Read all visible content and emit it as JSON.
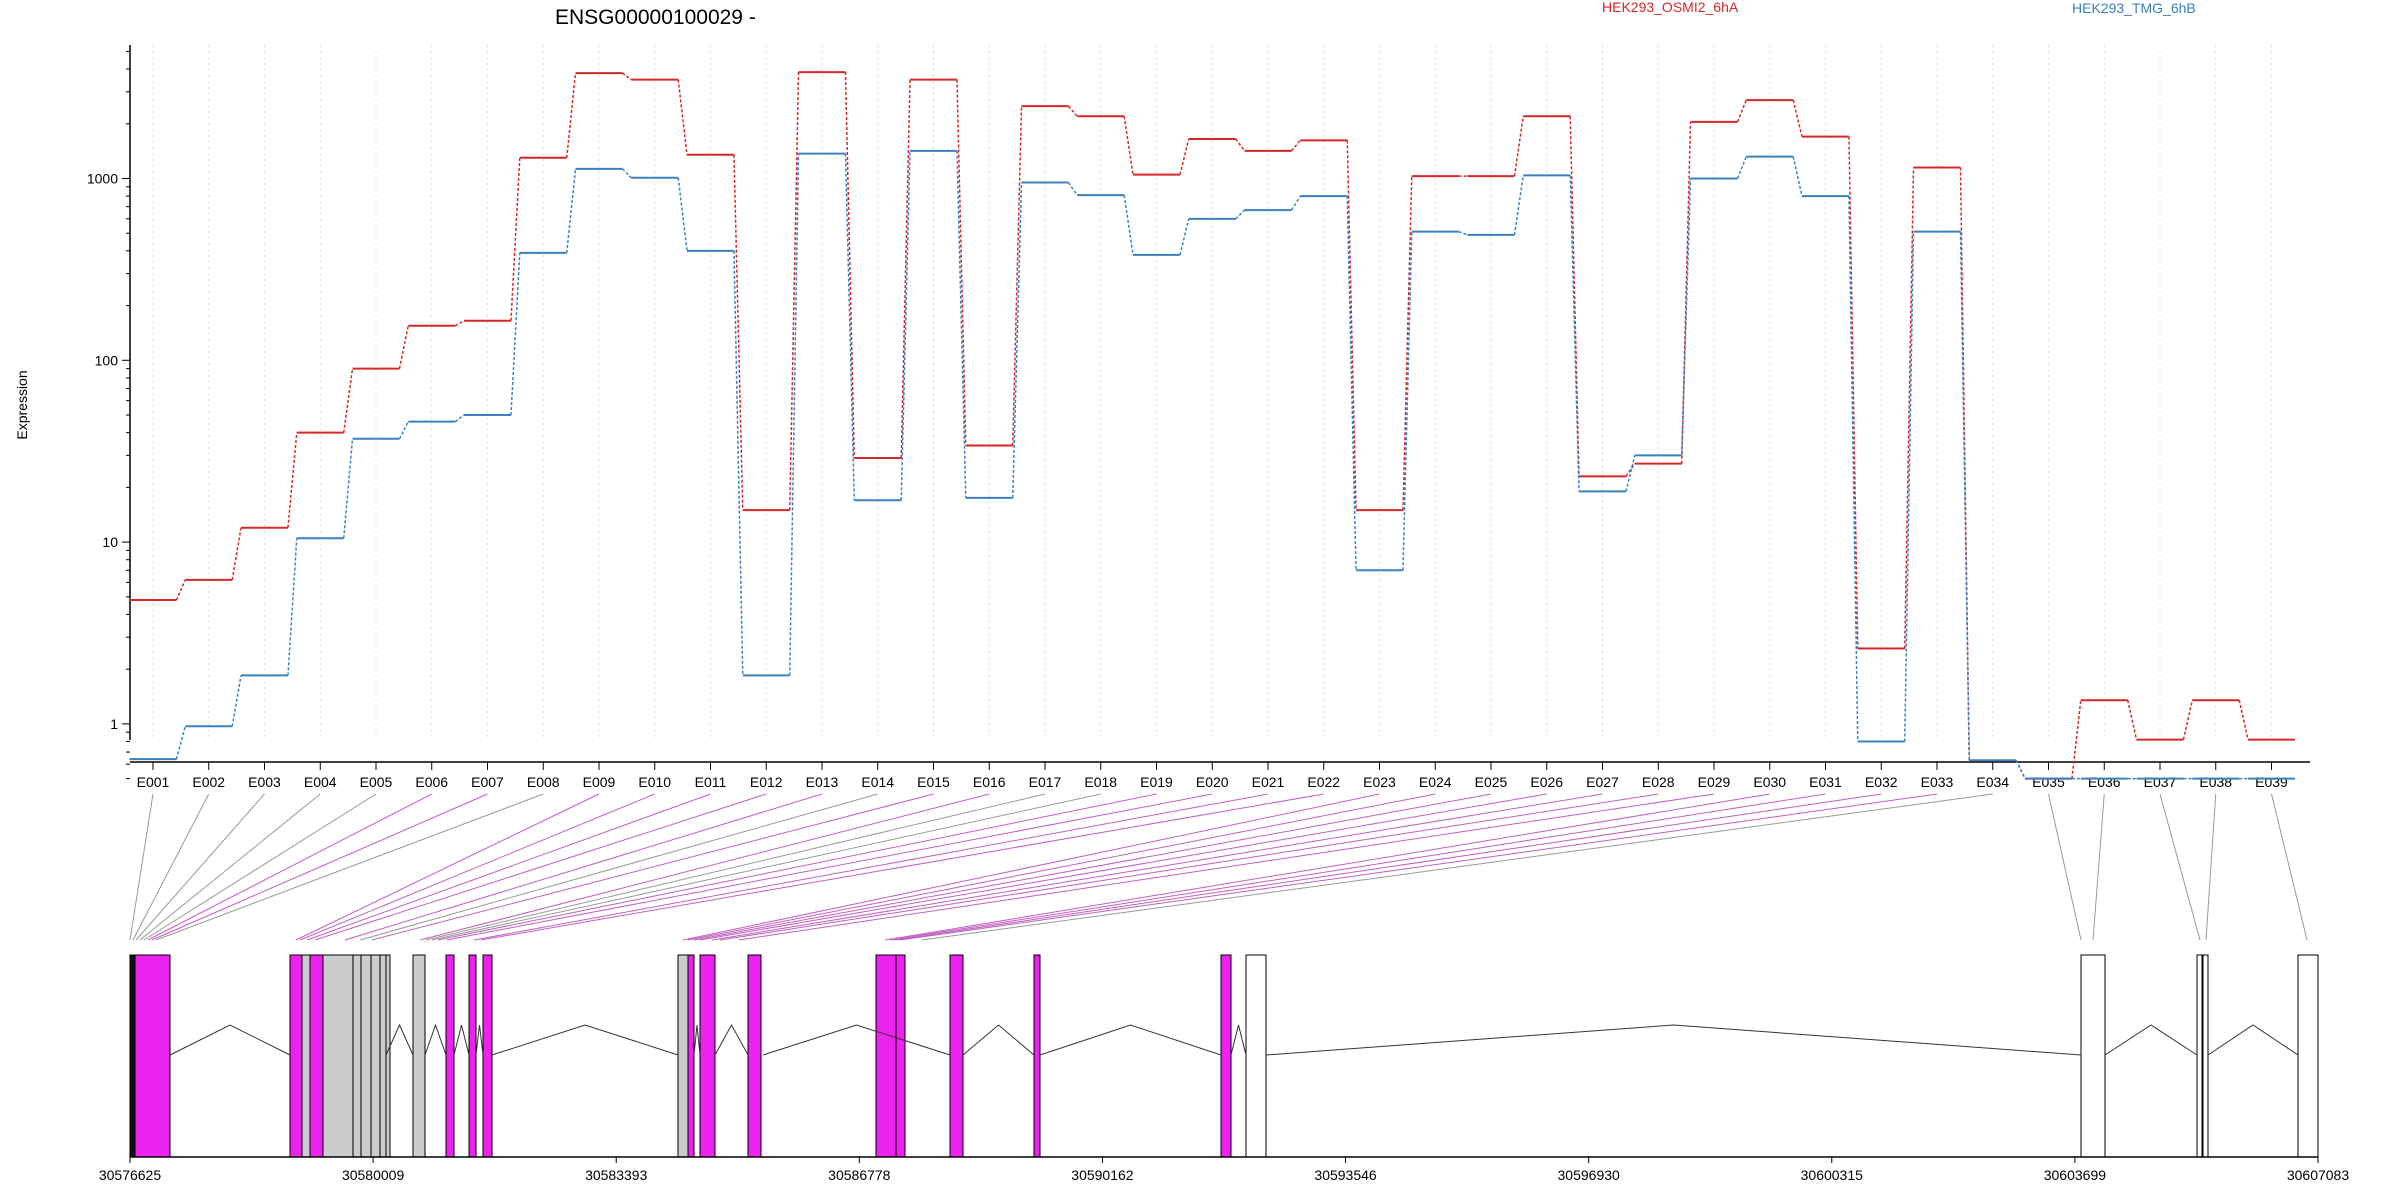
{
  "chart_data": {
    "type": "line",
    "title": "ENSG00000100029 -",
    "ylabel": "Expression",
    "yscale": "log",
    "ylim": [
      0.5,
      5000
    ],
    "yticks": [
      1,
      10,
      100,
      1000
    ],
    "legend_position": "top",
    "categories": [
      "E001",
      "E002",
      "E003",
      "E004",
      "E005",
      "E006",
      "E007",
      "E008",
      "E009",
      "E010",
      "E011",
      "E012",
      "E013",
      "E014",
      "E015",
      "E016",
      "E017",
      "E018",
      "E019",
      "E020",
      "E021",
      "E022",
      "E023",
      "E024",
      "E025",
      "E026",
      "E027",
      "E028",
      "E029",
      "E030",
      "E031",
      "E032",
      "E033",
      "E034",
      "E035",
      "E036",
      "E037",
      "E038",
      "E039"
    ],
    "series": [
      {
        "name": "HEK293_OSMI2_6hA",
        "color": "#d62728",
        "values": [
          4.8,
          6.2,
          12,
          40,
          90,
          155,
          165,
          1300,
          3800,
          3500,
          1350,
          15,
          3850,
          29,
          3500,
          34,
          2500,
          2200,
          1050,
          1650,
          1420,
          1620,
          15,
          1030,
          1030,
          2200,
          23,
          27,
          2050,
          2700,
          1700,
          2.6,
          1150,
          0.63,
          0.5,
          1.35,
          0.82,
          1.35,
          0.82
        ]
      },
      {
        "name": "HEK293_TMG_6hB",
        "color": "#3c80c0",
        "values": [
          0.64,
          0.97,
          1.85,
          10.5,
          37,
          46,
          50,
          390,
          1130,
          1010,
          400,
          1.85,
          1370,
          17,
          1420,
          17.5,
          950,
          810,
          380,
          600,
          670,
          800,
          7,
          510,
          490,
          1040,
          19,
          30,
          1000,
          1320,
          800,
          0.8,
          510,
          0.63,
          0.5,
          0.5,
          0.5,
          0.5,
          0.5
        ]
      }
    ],
    "exon_color": "#ee22ee",
    "genomic_axis_ticks": [
      "30576625",
      "30580009",
      "30583393",
      "30586778",
      "30590162",
      "30593546",
      "30596930",
      "30600315",
      "30603699",
      "30607083"
    ]
  }
}
